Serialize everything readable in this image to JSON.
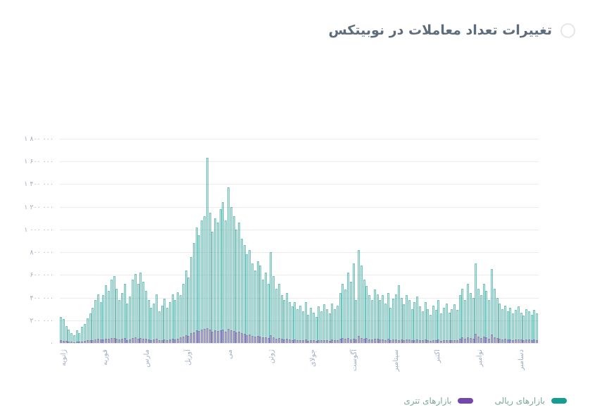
{
  "header": {
    "title": "تغییرات تعداد معاملات در نوبیتکس"
  },
  "legend": {
    "items": [
      {
        "label": "بازارهای ریالی",
        "color": "#149e90"
      },
      {
        "label": "بازارهای تتری",
        "color": "#7348ad"
      }
    ]
  },
  "chart_data": {
    "type": "bar",
    "title": "تغییرات تعداد معاملات در نوبیتکس",
    "xlabel": "",
    "ylabel": "",
    "ylim": [
      0,
      1800000
    ],
    "grid": true,
    "legend_position": "bottom-right",
    "points_per_month": 15,
    "x_tick_labels": [
      "ژانویه",
      "فوریه",
      "مارس",
      "آوریل",
      "می",
      "ژوئن",
      "جولای",
      "آگوست",
      "سپتامبر",
      "اکتبر",
      "نوامبر",
      "دسامبر"
    ],
    "y_tick_labels": [
      "۱ ۸۰۰ ۰۰۰",
      "۱ ۶۰۰ ۰۰۰",
      "۱ ۴۰۰ ۰۰۰",
      "۱ ۲۰۰ ۰۰۰",
      "۱ ۰۰۰ ۰۰۰",
      "۸۰۰ ۰۰۰",
      "۶۰۰ ۰۰۰",
      "۴۰۰ ۰۰۰",
      "۲۰۰ ۰۰۰",
      "۰"
    ],
    "series": [
      {
        "name": "بازارهای ریالی",
        "id": "rial",
        "color": "#149e90",
        "stroke": "rgba(34,160,150,0.55)",
        "fill": "rgba(34,160,150,0.20)",
        "values": [
          230000,
          210000,
          150000,
          120000,
          90000,
          70000,
          110000,
          85000,
          140000,
          170000,
          220000,
          260000,
          310000,
          380000,
          430000,
          360000,
          420000,
          510000,
          460000,
          560000,
          590000,
          480000,
          380000,
          440000,
          520000,
          350000,
          410000,
          560000,
          610000,
          520000,
          620000,
          540000,
          460000,
          380000,
          310000,
          350000,
          430000,
          280000,
          330000,
          390000,
          310000,
          360000,
          430000,
          380000,
          450000,
          420000,
          520000,
          640000,
          580000,
          760000,
          880000,
          1020000,
          950000,
          1080000,
          1120000,
          1630000,
          1150000,
          980000,
          1100000,
          1060000,
          1180000,
          1240000,
          1080000,
          1370000,
          1200000,
          1120000,
          1000000,
          1060000,
          920000,
          860000,
          780000,
          820000,
          700000,
          640000,
          720000,
          680000,
          560000,
          620000,
          520000,
          800000,
          590000,
          480000,
          520000,
          420000,
          380000,
          440000,
          360000,
          320000,
          360000,
          300000,
          330000,
          280000,
          360000,
          250000,
          310000,
          270000,
          230000,
          320000,
          280000,
          340000,
          300000,
          260000,
          350000,
          300000,
          330000,
          440000,
          520000,
          470000,
          620000,
          540000,
          700000,
          380000,
          820000,
          680000,
          560000,
          500000,
          420000,
          380000,
          470000,
          430000,
          380000,
          420000,
          350000,
          440000,
          310000,
          390000,
          430000,
          510000,
          400000,
          340000,
          420000,
          380000,
          300000,
          360000,
          410000,
          320000,
          280000,
          360000,
          300000,
          250000,
          330000,
          290000,
          380000,
          260000,
          310000,
          350000,
          270000,
          300000,
          340000,
          290000,
          420000,
          480000,
          380000,
          520000,
          440000,
          400000,
          700000,
          480000,
          420000,
          520000,
          460000,
          380000,
          650000,
          480000,
          400000,
          350000,
          300000,
          330000,
          280000,
          310000,
          260000,
          290000,
          320000,
          270000,
          240000,
          300000,
          280000,
          250000,
          290000,
          260000
        ]
      },
      {
        "name": "بازارهای تتری",
        "id": "tether",
        "color": "#7348ad",
        "stroke": "rgba(124,84,173,0.55)",
        "fill": "rgba(124,84,173,0.28)",
        "values": [
          22000,
          20000,
          16000,
          14000,
          10000,
          9000,
          13000,
          11000,
          15000,
          18000,
          22000,
          24000,
          28000,
          32000,
          36000,
          30000,
          34000,
          40000,
          36000,
          44000,
          46000,
          38000,
          32000,
          36000,
          42000,
          28000,
          33000,
          44000,
          48000,
          40000,
          44000,
          40000,
          36000,
          30000,
          26000,
          30000,
          36000,
          24000,
          28000,
          34000,
          27000,
          31000,
          37000,
          33000,
          39000,
          48000,
          56000,
          70000,
          64000,
          84000,
          96000,
          112000,
          104000,
          118000,
          122000,
          132000,
          115000,
          100000,
          110000,
          106000,
          112000,
          118000,
          102000,
          126000,
          110000,
          104000,
          92000,
          98000,
          84000,
          78000,
          70000,
          74000,
          62000,
          56000,
          64000,
          58000,
          48000,
          52000,
          44000,
          66000,
          50000,
          40000,
          44000,
          35000,
          32000,
          37000,
          30000,
          26000,
          30000,
          25000,
          27000,
          23000,
          30000,
          21000,
          26000,
          22000,
          19000,
          26000,
          23000,
          28000,
          25000,
          21000,
          29000,
          25000,
          27000,
          36000,
          42000,
          38000,
          45000,
          34000,
          40000,
          31000,
          60000,
          44000,
          37000,
          41000,
          34000,
          29000,
          38000,
          35000,
          30000,
          33000,
          28000,
          35000,
          25000,
          31000,
          34000,
          28000,
          32000,
          27000,
          33000,
          30000,
          24000,
          28000,
          32000,
          26000,
          22000,
          29000,
          24000,
          20000,
          26000,
          23000,
          30000,
          21000,
          25000,
          28000,
          22000,
          24000,
          27000,
          23000,
          40000,
          48000,
          38000,
          52000,
          44000,
          40000,
          82000,
          56000,
          44000,
          58000,
          48000,
          38000,
          72000,
          52000,
          42000,
          38000,
          32000,
          35000,
          30000,
          33000,
          28000,
          31000,
          34000,
          29000,
          26000,
          32000,
          30000,
          27000,
          29000,
          25000
        ]
      }
    ]
  }
}
